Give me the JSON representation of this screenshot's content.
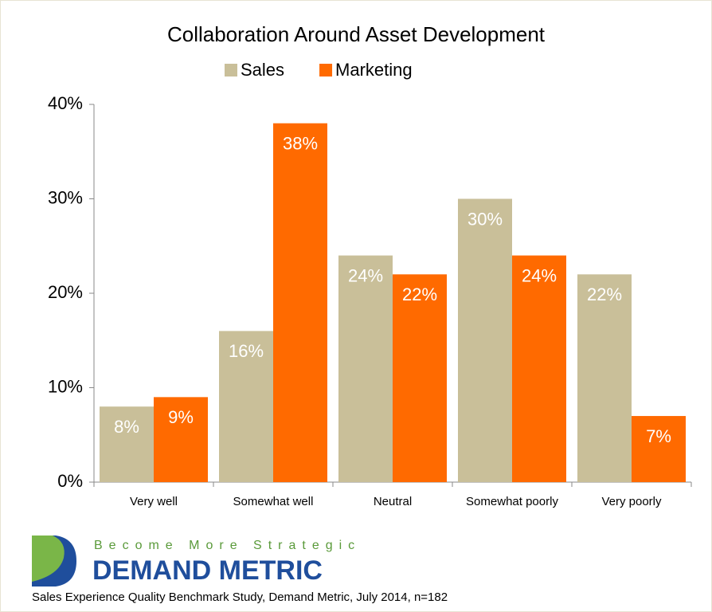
{
  "chart_data": {
    "type": "bar",
    "title": "Collaboration Around Asset Development",
    "categories": [
      "Very well",
      "Somewhat well",
      "Neutral",
      "Somewhat poorly",
      "Very poorly"
    ],
    "series": [
      {
        "name": "Sales",
        "color": "#c9bf99",
        "values": [
          8,
          16,
          24,
          30,
          22
        ],
        "value_labels": [
          "8%",
          "16%",
          "24%",
          "30%",
          "22%"
        ]
      },
      {
        "name": "Marketing",
        "color": "#ff6a00",
        "values": [
          9,
          38,
          22,
          24,
          7
        ],
        "value_labels": [
          "9%",
          "38%",
          "22%",
          "24%",
          "7%"
        ]
      }
    ],
    "ylim": [
      0,
      40
    ],
    "yticks": [
      {
        "value": 0,
        "label": "0%"
      },
      {
        "value": 10,
        "label": "10%"
      },
      {
        "value": 20,
        "label": "20%"
      },
      {
        "value": 30,
        "label": "30%"
      },
      {
        "value": 40,
        "label": "40%"
      }
    ],
    "legend": "top",
    "grid": false
  },
  "footer": {
    "tagline": "Become More Strategic",
    "brand": "DEMAND METRIC",
    "source": "Sales Experience Quality Benchmark Study, Demand Metric, July 2014, n=182"
  }
}
